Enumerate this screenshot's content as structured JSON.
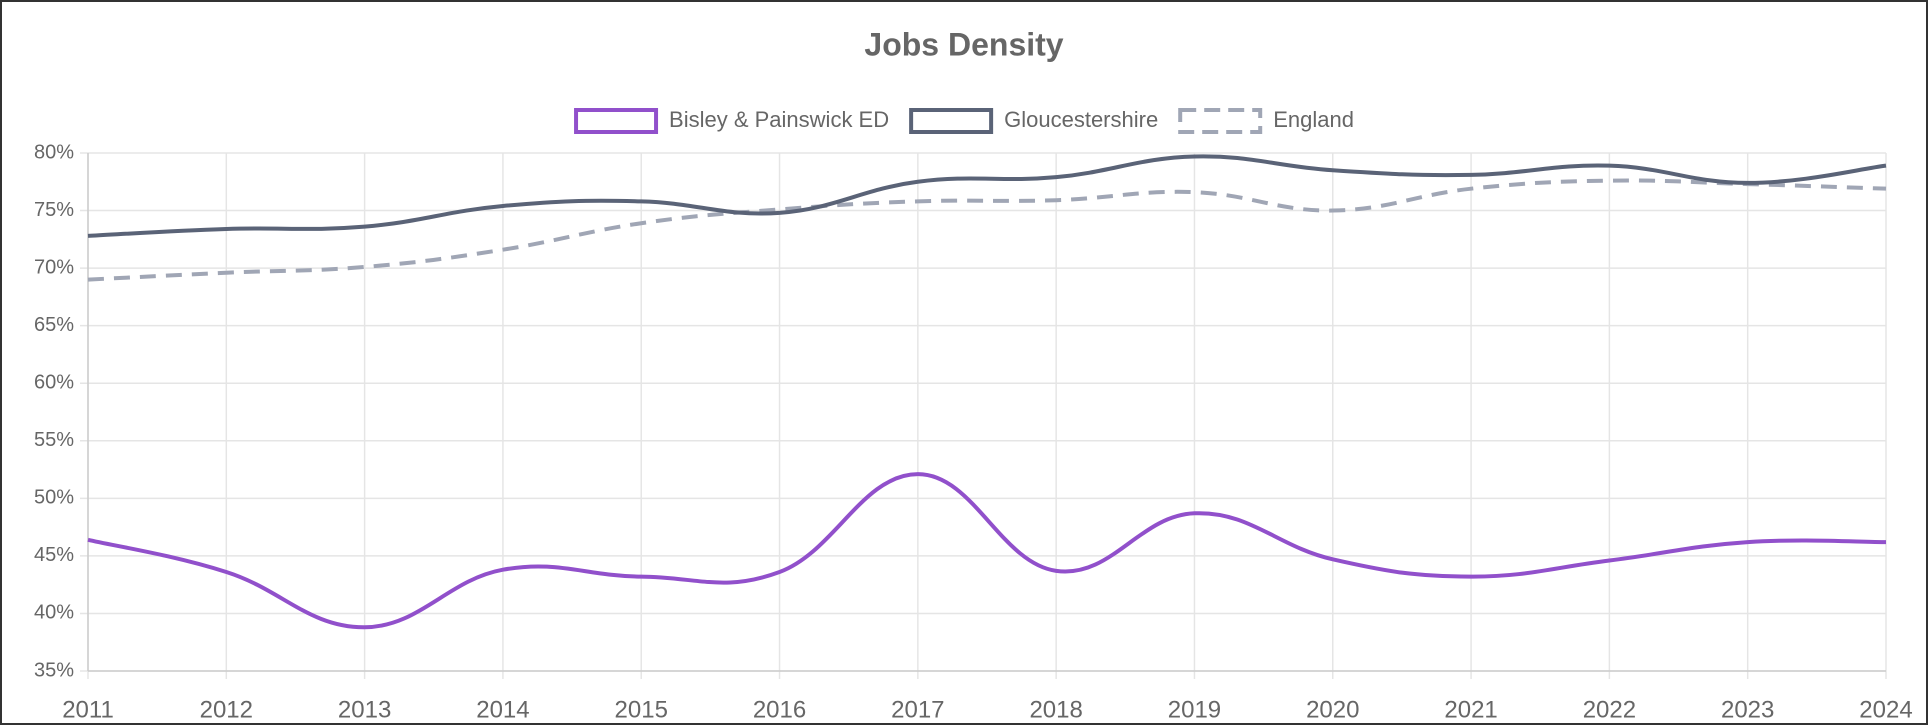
{
  "chart_data": {
    "type": "line",
    "title": "Jobs Density",
    "categories": [
      "2011",
      "2012",
      "2013",
      "2014",
      "2015",
      "2016",
      "2017",
      "2018",
      "2019",
      "2020",
      "2021",
      "2022",
      "2023",
      "2024"
    ],
    "series": [
      {
        "name": "Bisley & Painswick ED",
        "color": "#9150cb",
        "dashed": false,
        "values": [
          46.4,
          43.6,
          38.8,
          43.8,
          43.2,
          43.6,
          52.1,
          43.7,
          48.7,
          44.7,
          43.2,
          44.6,
          46.2,
          46.2
        ]
      },
      {
        "name": "Gloucestershire",
        "color": "#5a6377",
        "dashed": false,
        "values": [
          72.8,
          73.4,
          73.6,
          75.4,
          75.8,
          74.8,
          77.5,
          77.9,
          79.7,
          78.5,
          78.1,
          78.9,
          77.4,
          78.9
        ]
      },
      {
        "name": "England",
        "color": "#a0a6b5",
        "dashed": true,
        "values": [
          69.0,
          69.6,
          70.1,
          71.6,
          73.9,
          75.1,
          75.8,
          75.9,
          76.6,
          75.0,
          76.9,
          77.6,
          77.3,
          76.9
        ]
      }
    ],
    "ylim": [
      35,
      80
    ],
    "yticks": [
      {
        "value": 35,
        "label": "35%"
      },
      {
        "value": 40,
        "label": "40%"
      },
      {
        "value": 45,
        "label": "45%"
      },
      {
        "value": 50,
        "label": "50%"
      },
      {
        "value": 55,
        "label": "55%"
      },
      {
        "value": 60,
        "label": "60%"
      },
      {
        "value": 65,
        "label": "65%"
      },
      {
        "value": 70,
        "label": "70%"
      },
      {
        "value": 75,
        "label": "75%"
      },
      {
        "value": 80,
        "label": "80%"
      }
    ],
    "grid": true,
    "legend": "top"
  }
}
